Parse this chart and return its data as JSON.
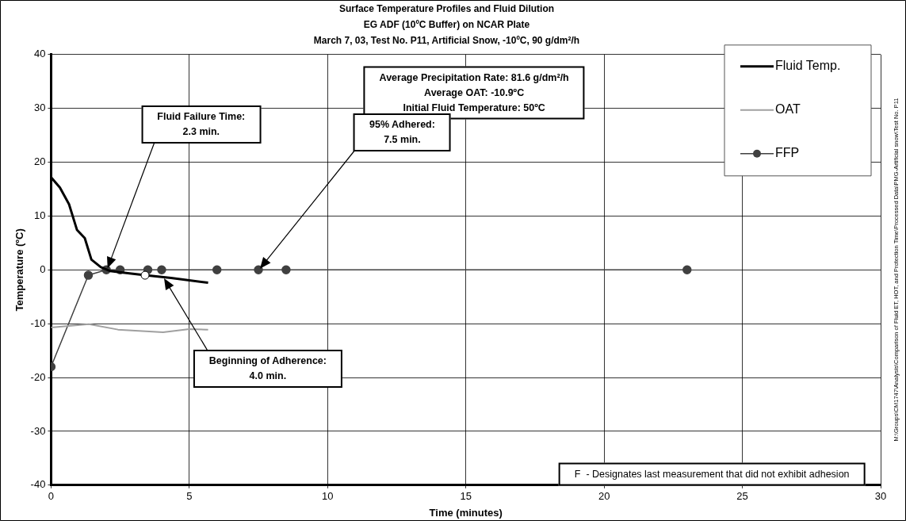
{
  "chart_data": {
    "type": "line",
    "title": "Surface Temperature Profiles and Fluid Dilution",
    "subtitle": "EG ADF (10ºC Buffer) on NCAR Plate\nMarch 7, 03, Test No. P11, Artificial Snow, -10ºC, 90 g/dm²/h",
    "xlabel": "Time (minutes)",
    "ylabel": "Temperature (ºC)",
    "xlim": [
      0,
      30
    ],
    "xticks": [
      0,
      5,
      10,
      15,
      20,
      25,
      30
    ],
    "ylim": [
      -40,
      40
    ],
    "yticks": [
      -40,
      -30,
      -20,
      -10,
      0,
      10,
      20,
      30,
      40
    ],
    "grid": true,
    "legend": "top right",
    "series": [
      {
        "name": "Fluid Temp.",
        "color": "#000000",
        "x": [
          0,
          0.32,
          0.65,
          0.94,
          1.22,
          1.46,
          1.8,
          2.13,
          2.9,
          3.4,
          4.34,
          5.68
        ],
        "values": [
          17.2,
          15.3,
          12.2,
          7.4,
          5.9,
          1.9,
          0.5,
          -0.2,
          -0.7,
          -1,
          -1.5,
          -2.4
        ]
      },
      {
        "name": "OAT",
        "color": "#a0a0a0",
        "x": [
          0,
          1.37,
          2.42,
          4.05,
          5.0,
          5.68
        ],
        "values": [
          -10.7,
          -10.1,
          -11.1,
          -11.6,
          -11.0,
          -11.1
        ]
      },
      {
        "name": "FFP",
        "color": "#404040",
        "marker": "circle",
        "x": [
          0,
          1.35,
          2.0,
          2.5,
          3.5,
          4.0,
          6.0,
          7.5,
          8.5,
          23.0
        ],
        "values": [
          -18,
          -1,
          0,
          0,
          0,
          0,
          0,
          0,
          0,
          0
        ]
      },
      {
        "type": "scatter",
        "color": "#ffffff",
        "marker": "circle",
        "x": [
          3.4
        ],
        "values": [
          -1
        ]
      }
    ],
    "annotations": [
      "Average Precipitation Rate: 81.6 g/dm²/h\nAverage OAT: -10.9ºC\nInitial Fluid Temperature: 50ºC",
      "Fluid Failure Time:\n2.3 min.",
      "95% Adhered:\n7.5 min.",
      "Beginning of Adherence:\n4.0 min.",
      "F  - Designates last measurement that did not exhibit adhesion",
      "M:\\Groups\\CM1747\\Analysis\\Comparison of Fluid ET, HOT, and Protection Time\\Processed Data\\PMG-Artificial snow\\Test No. P11"
    ]
  }
}
